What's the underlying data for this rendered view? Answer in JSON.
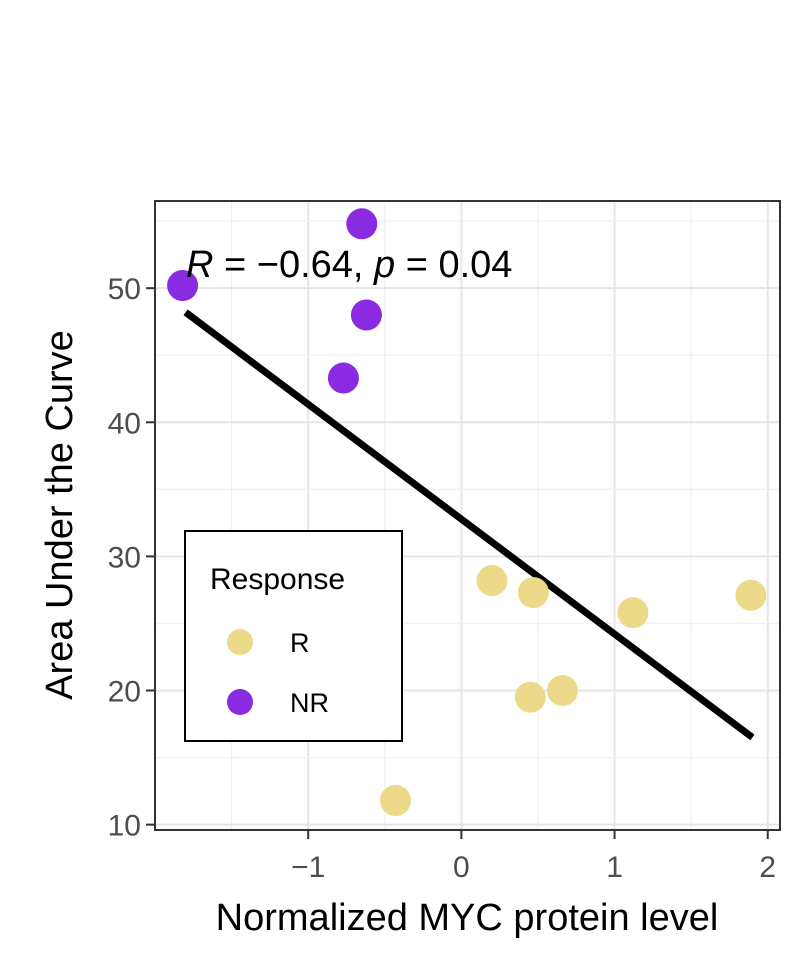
{
  "chart_data": {
    "type": "scatter",
    "title": "",
    "xlabel": "Normalized MYC protein level",
    "ylabel": "Area Under the Curve",
    "xlim": [
      -2.0,
      2.08
    ],
    "ylim": [
      9.6,
      56.5
    ],
    "x_ticks": [
      -1,
      0,
      1,
      2
    ],
    "x_tick_labels": [
      "−1",
      "0",
      "1",
      "2"
    ],
    "y_ticks": [
      10,
      20,
      30,
      40,
      50
    ],
    "y_tick_labels": [
      "10",
      "20",
      "30",
      "40",
      "50"
    ],
    "grid": true,
    "legend": {
      "title": "Response",
      "position": "bottom-left",
      "entries": [
        {
          "label": "R",
          "color": "#EDD98A"
        },
        {
          "label": "NR",
          "color": "#8A2BE2"
        }
      ]
    },
    "series": [
      {
        "name": "R",
        "color": "#EDD98A",
        "points": [
          {
            "x": 0.2,
            "y": 28.2
          },
          {
            "x": 0.47,
            "y": 27.3
          },
          {
            "x": 1.12,
            "y": 25.8
          },
          {
            "x": 1.89,
            "y": 27.1
          },
          {
            "x": 0.45,
            "y": 19.5
          },
          {
            "x": 0.66,
            "y": 20.0
          },
          {
            "x": -0.43,
            "y": 11.8
          }
        ]
      },
      {
        "name": "NR",
        "color": "#8A2BE2",
        "points": [
          {
            "x": -1.82,
            "y": 50.2
          },
          {
            "x": -0.65,
            "y": 54.8
          },
          {
            "x": -0.62,
            "y": 48.0
          },
          {
            "x": -0.77,
            "y": 43.3
          }
        ]
      }
    ],
    "regression_line": {
      "x": [
        -1.8,
        1.9
      ],
      "y": [
        48.2,
        16.5
      ],
      "color": "#000000"
    },
    "annotation": {
      "r_symbol": "R",
      "r_eq": " = −0.64, ",
      "p_symbol": "p",
      "p_eq": " = 0.04"
    }
  }
}
